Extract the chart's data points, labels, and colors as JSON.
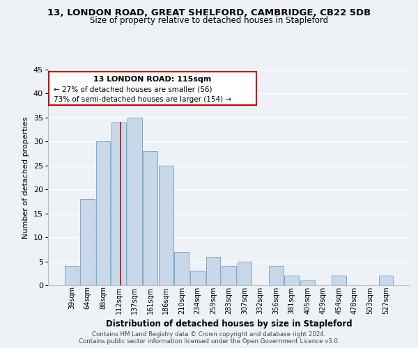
{
  "title": "13, LONDON ROAD, GREAT SHELFORD, CAMBRIDGE, CB22 5DB",
  "subtitle": "Size of property relative to detached houses in Stapleford",
  "xlabel": "Distribution of detached houses by size in Stapleford",
  "ylabel": "Number of detached properties",
  "bar_color": "#c8d8e8",
  "bar_edge_color": "#7aa8cc",
  "categories": [
    "39sqm",
    "64sqm",
    "88sqm",
    "112sqm",
    "137sqm",
    "161sqm",
    "186sqm",
    "210sqm",
    "234sqm",
    "259sqm",
    "283sqm",
    "307sqm",
    "332sqm",
    "356sqm",
    "381sqm",
    "405sqm",
    "429sqm",
    "454sqm",
    "478sqm",
    "503sqm",
    "527sqm"
  ],
  "values": [
    4,
    18,
    30,
    34,
    35,
    28,
    25,
    7,
    3,
    6,
    4,
    5,
    0,
    4,
    2,
    1,
    0,
    2,
    0,
    0,
    2
  ],
  "ylim": [
    0,
    45
  ],
  "yticks": [
    0,
    5,
    10,
    15,
    20,
    25,
    30,
    35,
    40,
    45
  ],
  "annotation_title": "13 LONDON ROAD: 115sqm",
  "annotation_line1": "← 27% of detached houses are smaller (56)",
  "annotation_line2": "73% of semi-detached houses are larger (154) →",
  "footer_line1": "Contains HM Land Registry data © Crown copyright and database right 2024.",
  "footer_line2": "Contains public sector information licensed under the Open Government Licence v3.0.",
  "bg_color": "#eef2f7",
  "grid_color": "#ffffff",
  "title_fontsize": 9.5,
  "subtitle_fontsize": 8.5
}
